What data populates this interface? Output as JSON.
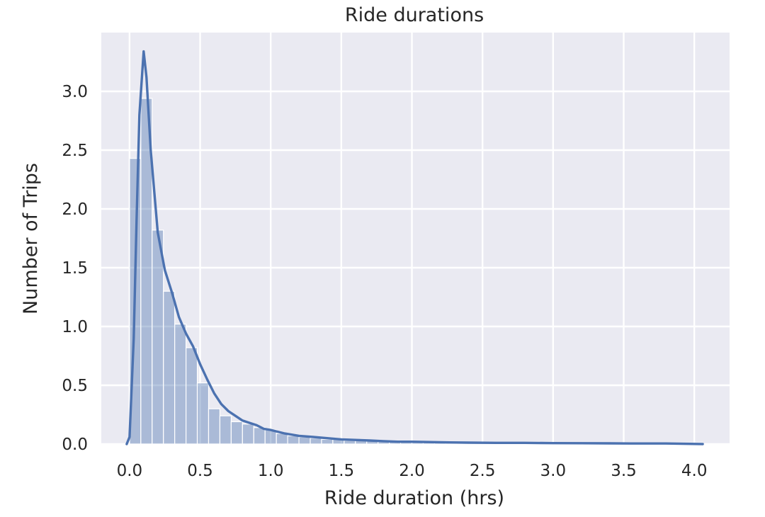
{
  "chart_data": {
    "type": "histogram",
    "title": "Ride durations",
    "xlabel": "Ride duration (hrs)",
    "ylabel": "Number of Trips",
    "xlim": [
      -0.2,
      4.25
    ],
    "ylim": [
      0,
      3.5
    ],
    "grid": true,
    "background": "#EAEAF2",
    "grid_color": "#FFFFFF",
    "bar_color": "#4C72B0",
    "bar_opacity": 0.4,
    "line_color": "#4C72B0",
    "xticks": [
      "0.0",
      "0.5",
      "1.0",
      "1.5",
      "2.0",
      "2.5",
      "3.0",
      "3.5",
      "4.0"
    ],
    "yticks": [
      "0.0",
      "0.5",
      "1.0",
      "1.5",
      "2.0",
      "2.5",
      "3.0"
    ],
    "bin_edges": [
      0.0,
      0.08,
      0.16,
      0.24,
      0.32,
      0.4,
      0.48,
      0.56,
      0.64,
      0.72,
      0.8,
      0.88,
      0.96,
      1.04,
      1.12,
      1.2,
      1.28,
      1.36,
      1.44,
      1.52,
      1.6,
      1.68,
      1.76,
      1.84,
      1.92,
      2.0,
      2.08,
      2.16,
      2.24,
      2.32,
      2.4,
      2.48,
      2.56,
      2.64,
      2.72,
      2.8,
      2.88,
      2.96,
      3.04,
      3.12,
      3.2,
      3.28,
      3.36,
      3.44,
      3.52,
      3.6,
      3.68,
      3.76,
      3.84,
      3.92,
      4.0,
      4.06
    ],
    "bar_values": [
      2.43,
      2.94,
      1.82,
      1.3,
      1.02,
      0.82,
      0.52,
      0.3,
      0.24,
      0.19,
      0.17,
      0.14,
      0.12,
      0.09,
      0.07,
      0.06,
      0.05,
      0.04,
      0.04,
      0.03,
      0.03,
      0.03,
      0.02,
      0.02,
      0.02,
      0.02,
      0.02,
      0.01,
      0.01,
      0.01,
      0.01,
      0.01,
      0.01,
      0.01,
      0.01,
      0.01,
      0.01,
      0.01,
      0.01,
      0.01,
      0.01,
      0.01,
      0.01,
      0.01,
      0.01,
      0.01,
      0.01,
      0.01,
      0.01,
      0.01,
      0.01
    ],
    "kde": {
      "x": [
        -0.02,
        0.0,
        0.03,
        0.05,
        0.07,
        0.1,
        0.12,
        0.15,
        0.2,
        0.25,
        0.3,
        0.35,
        0.4,
        0.45,
        0.5,
        0.55,
        0.6,
        0.65,
        0.7,
        0.75,
        0.8,
        0.85,
        0.9,
        0.95,
        1.0,
        1.1,
        1.2,
        1.3,
        1.4,
        1.5,
        1.6,
        1.7,
        1.8,
        1.9,
        2.0,
        2.2,
        2.4,
        2.6,
        2.8,
        3.0,
        3.2,
        3.4,
        3.6,
        3.8,
        4.06
      ],
      "y": [
        0.0,
        0.06,
        0.9,
        1.9,
        2.8,
        3.34,
        3.12,
        2.5,
        1.8,
        1.48,
        1.29,
        1.08,
        0.94,
        0.83,
        0.68,
        0.55,
        0.43,
        0.34,
        0.28,
        0.24,
        0.2,
        0.18,
        0.16,
        0.13,
        0.12,
        0.09,
        0.07,
        0.06,
        0.05,
        0.04,
        0.035,
        0.03,
        0.025,
        0.02,
        0.02,
        0.015,
        0.012,
        0.01,
        0.01,
        0.008,
        0.007,
        0.006,
        0.005,
        0.005,
        0.0
      ]
    }
  }
}
